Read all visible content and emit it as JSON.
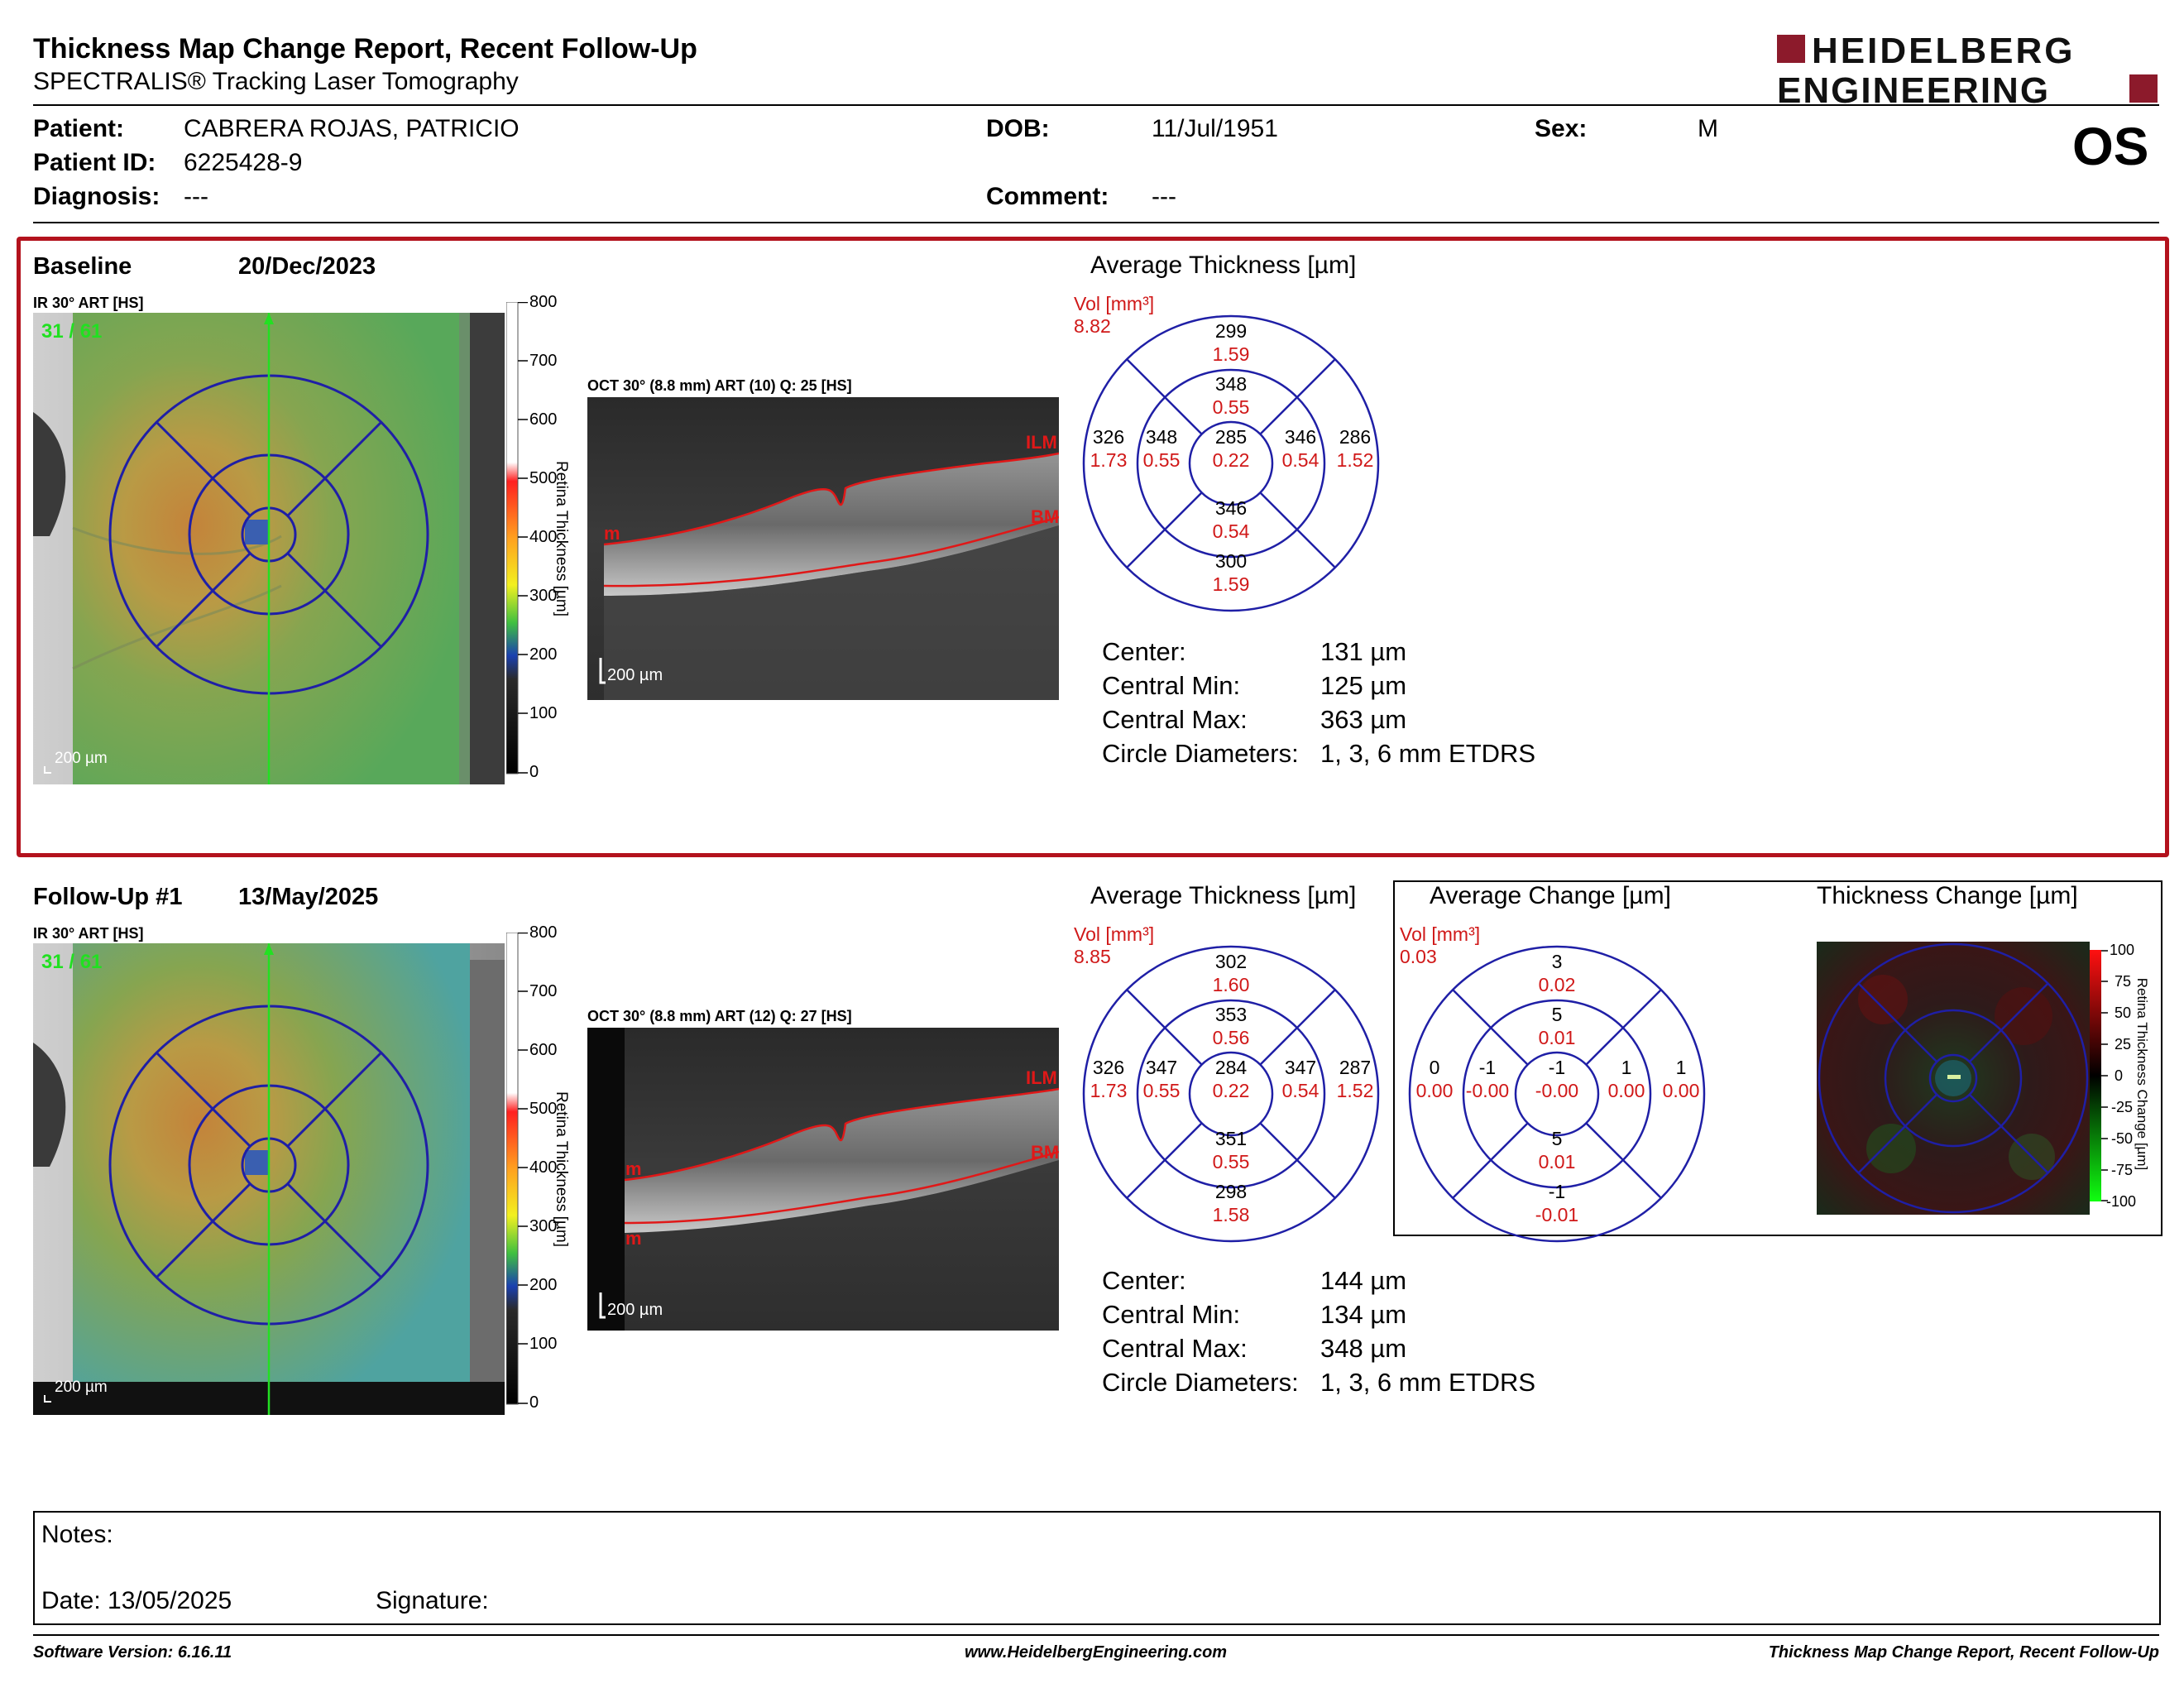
{
  "header": {
    "title": "Thickness Map Change Report, Recent Follow-Up",
    "subtitle": "SPECTRALIS® Tracking Laser Tomography",
    "logo_line1": "HEIDELBERG",
    "logo_line2": "ENGINEERING",
    "eye": "OS"
  },
  "patient": {
    "name_label": "Patient:",
    "name": "CABRERA ROJAS, PATRICIO",
    "id_label": "Patient ID:",
    "id": "6225428-9",
    "diag_label": "Diagnosis:",
    "diag": "---",
    "dob_label": "DOB:",
    "dob": "11/Jul/1951",
    "comment_label": "Comment:",
    "comment": "---",
    "sex_label": "Sex:",
    "sex": "M"
  },
  "colors": {
    "accent_red": "#b3121d",
    "ring_blue": "#1f1fa6",
    "vol_red": "#d01818"
  },
  "baseline": {
    "label": "Baseline",
    "date": "20/Dec/2023",
    "ir_title": "IR 30° ART [HS]",
    "ir_counter": "31 / 61",
    "scale": "200 µm",
    "oct_title": "OCT 30° (8.8 mm) ART (10) Q: 25 [HS]",
    "oct_scale": "200 µm",
    "ilm": "ILM",
    "bm": "BM",
    "m": "m",
    "avg_title": "Average Thickness [µm]",
    "vol_label": "Vol [mm³]",
    "vol_total": "8.82",
    "grid": {
      "outer_top": "299",
      "outer_top_v": "1.59",
      "inner_top": "348",
      "inner_top_v": "0.55",
      "center": "285",
      "center_v": "0.22",
      "inner_left": "348",
      "inner_left_v": "0.55",
      "inner_right": "346",
      "inner_right_v": "0.54",
      "outer_left": "326",
      "outer_left_v": "1.73",
      "outer_right": "286",
      "outer_right_v": "1.52",
      "inner_bottom": "346",
      "inner_bottom_v": "0.54",
      "outer_bottom": "300",
      "outer_bottom_v": "1.59"
    },
    "stats": {
      "center_label": "Center:",
      "center": "131 µm",
      "min_label": "Central Min:",
      "min": "125 µm",
      "max_label": "Central Max:",
      "max": "363 µm",
      "diam_label": "Circle Diameters:",
      "diam": "1, 3, 6 mm ETDRS"
    }
  },
  "followup": {
    "label": "Follow-Up #1",
    "date": "13/May/2025",
    "ir_title": "IR 30° ART [HS]",
    "ir_counter": "31 / 61",
    "scale": "200 µm",
    "oct_title": "OCT 30° (8.8 mm) ART (12) Q: 27 [HS]",
    "oct_scale": "200 µm",
    "ilm": "ILM",
    "bm": "BM",
    "m": "m",
    "m2": "m",
    "avg_title": "Average Thickness [µm]",
    "vol_label": "Vol [mm³]",
    "vol_total": "8.85",
    "grid": {
      "outer_top": "302",
      "outer_top_v": "1.60",
      "inner_top": "353",
      "inner_top_v": "0.56",
      "center": "284",
      "center_v": "0.22",
      "inner_left": "347",
      "inner_left_v": "0.55",
      "inner_right": "347",
      "inner_right_v": "0.54",
      "outer_left": "326",
      "outer_left_v": "1.73",
      "outer_right": "287",
      "outer_right_v": "1.52",
      "inner_bottom": "351",
      "inner_bottom_v": "0.55",
      "outer_bottom": "298",
      "outer_bottom_v": "1.58"
    },
    "stats": {
      "center_label": "Center:",
      "center": "144 µm",
      "min_label": "Central Min:",
      "min": "134 µm",
      "max_label": "Central Max:",
      "max": "348 µm",
      "diam_label": "Circle Diameters:",
      "diam": "1, 3, 6 mm ETDRS"
    },
    "change_title": "Average Change [µm]",
    "change_vol_label": "Vol [mm³]",
    "change_vol_total": "0.03",
    "change_grid": {
      "outer_top": "3",
      "outer_top_v": "0.02",
      "inner_top": "5",
      "inner_top_v": "0.01",
      "center": "-1",
      "center_v": "-0.00",
      "inner_left": "-1",
      "inner_left_v": "-0.00",
      "inner_right": "1",
      "inner_right_v": "0.00",
      "outer_left": "0",
      "outer_left_v": "0.00",
      "outer_right": "1",
      "outer_right_v": "0.00",
      "inner_bottom": "5",
      "inner_bottom_v": "0.01",
      "outer_bottom": "-1",
      "outer_bottom_v": "-0.01"
    },
    "thick_change_title": "Thickness Change [µm]",
    "thick_change_axis": "Retina Thickness Change [µm]",
    "thick_change_ticks": [
      "100",
      "75",
      "50",
      "25",
      "0",
      "-25",
      "-50",
      "-75",
      "-100"
    ]
  },
  "colorbar": {
    "axis_label": "Retina Thickness [µm]",
    "ticks": [
      "800",
      "700",
      "600",
      "500",
      "400",
      "300",
      "200",
      "100",
      "0"
    ]
  },
  "notes": {
    "notes_label": "Notes:",
    "date_label": "Date: 13/05/2025",
    "signature_label": "Signature:"
  },
  "footer": {
    "left": "Software Version: 6.16.11",
    "center": "www.HeidelbergEngineering.com",
    "right": "Thickness Map Change Report, Recent Follow-Up"
  }
}
